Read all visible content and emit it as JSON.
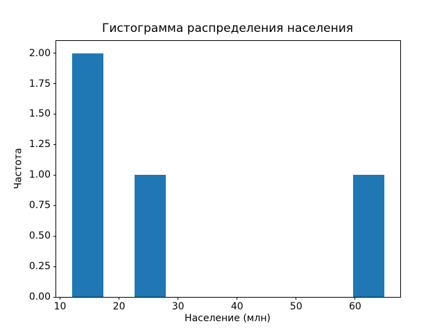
{
  "chart_data": {
    "type": "bar",
    "subtype": "histogram",
    "title": "Гистограмма распределения населения",
    "xlabel": "Население (млн)",
    "ylabel": "Частота",
    "bar_color": "#1f77b4",
    "axis_color": "#000000",
    "background_color": "#ffffff",
    "grid": "off",
    "legend": "none",
    "xlim": [
      9.35,
      67.65
    ],
    "ylim": [
      0,
      2.1
    ],
    "bins": [
      {
        "x0": 12.0,
        "x1": 17.3,
        "count": 2
      },
      {
        "x0": 22.6,
        "x1": 27.9,
        "count": 1
      },
      {
        "x0": 59.7,
        "x1": 65.0,
        "count": 1
      }
    ],
    "xticks": [
      {
        "v": 10,
        "label": "10"
      },
      {
        "v": 20,
        "label": "20"
      },
      {
        "v": 30,
        "label": "30"
      },
      {
        "v": 40,
        "label": "40"
      },
      {
        "v": 50,
        "label": "50"
      },
      {
        "v": 60,
        "label": "60"
      }
    ],
    "yticks": [
      {
        "v": 0.0,
        "label": "0.00"
      },
      {
        "v": 0.25,
        "label": "0.25"
      },
      {
        "v": 0.5,
        "label": "0.50"
      },
      {
        "v": 0.75,
        "label": "0.75"
      },
      {
        "v": 1.0,
        "label": "1.00"
      },
      {
        "v": 1.25,
        "label": "1.25"
      },
      {
        "v": 1.5,
        "label": "1.50"
      },
      {
        "v": 1.75,
        "label": "1.75"
      },
      {
        "v": 2.0,
        "label": "2.00"
      }
    ]
  }
}
